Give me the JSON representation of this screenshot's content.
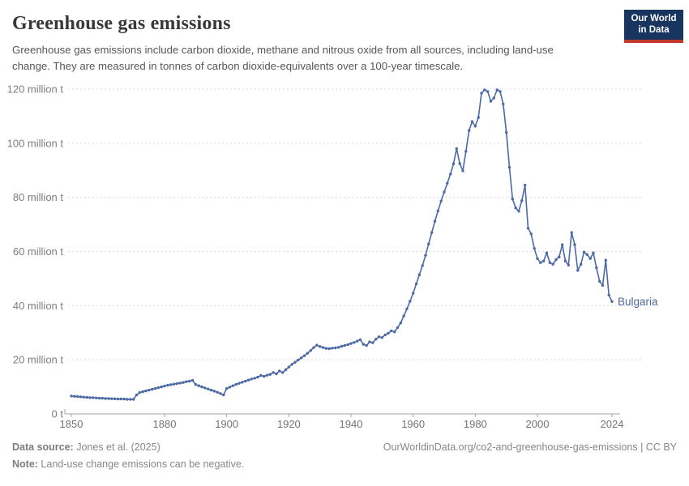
{
  "header": {
    "title": "Greenhouse gas emissions",
    "subtitle": "Greenhouse gas emissions include carbon dioxide, methane and nitrous oxide from all sources, including land-use change. They are measured in tonnes of carbon dioxide-equivalents over a 100-year timescale.",
    "logo": {
      "line1": "Our World",
      "line2": "in Data",
      "bg_color": "#17355e",
      "stripe_color": "#c0392b",
      "text_color": "#ffffff"
    }
  },
  "chart_data": {
    "type": "line",
    "title": "Greenhouse gas emissions",
    "entity": "Bulgaria",
    "unit": "tonnes of CO2-equivalents",
    "line_color": "#4c6aa5",
    "entity_label_color": "#4c68a1",
    "grid": "horizontal-dashed",
    "legend_position": "end-of-line",
    "x_start": 1850,
    "x_end": 2024,
    "xticks": [
      1850,
      1880,
      1900,
      1920,
      1940,
      1960,
      1980,
      2000,
      2024
    ],
    "ylim": [
      0,
      120
    ],
    "ytick_values": [
      0,
      20,
      40,
      60,
      80,
      100,
      120
    ],
    "ytick_labels": [
      "0 t",
      "20 million t",
      "40 million t",
      "60 million t",
      "80 million t",
      "100 million t",
      "120 million t"
    ],
    "values_unit": "million tonnes CO2e",
    "values": [
      6.6,
      6.5,
      6.4,
      6.3,
      6.2,
      6.1,
      6.0,
      6.0,
      5.9,
      5.8,
      5.8,
      5.7,
      5.7,
      5.6,
      5.6,
      5.5,
      5.5,
      5.5,
      5.4,
      5.4,
      5.4,
      7.0,
      7.9,
      8.2,
      8.5,
      8.8,
      9.1,
      9.4,
      9.7,
      10.0,
      10.3,
      10.6,
      10.8,
      11.0,
      11.2,
      11.4,
      11.6,
      11.9,
      12.1,
      12.4,
      10.9,
      10.4,
      10.0,
      9.6,
      9.2,
      8.8,
      8.4,
      8.0,
      7.5,
      7.0,
      9.4,
      9.9,
      10.4,
      10.9,
      11.3,
      11.7,
      12.1,
      12.5,
      12.9,
      13.2,
      13.6,
      14.2,
      13.9,
      14.3,
      14.6,
      15.3,
      14.8,
      15.9,
      15.3,
      16.3,
      17.3,
      18.3,
      19.1,
      19.9,
      20.7,
      21.5,
      22.4,
      23.4,
      24.5,
      25.4,
      24.9,
      24.5,
      24.2,
      24.1,
      24.3,
      24.4,
      24.6,
      25.0,
      25.3,
      25.6,
      26.0,
      26.4,
      26.9,
      27.4,
      25.7,
      25.3,
      26.6,
      26.3,
      27.6,
      28.5,
      28.2,
      29.2,
      29.8,
      30.7,
      30.3,
      31.9,
      33.6,
      36.2,
      38.8,
      41.6,
      44.6,
      48.0,
      51.4,
      54.8,
      58.6,
      62.8,
      67.0,
      71.2,
      75.0,
      78.6,
      82.0,
      85.2,
      88.6,
      92.4,
      98.0,
      92.5,
      89.8,
      97.0,
      104.7,
      108.0,
      106.3,
      109.5,
      118.5,
      119.7,
      119.1,
      115.5,
      116.7,
      119.7,
      119.1,
      114.5,
      104.0,
      91.1,
      79.4,
      76.1,
      74.9,
      78.8,
      84.5,
      68.6,
      66.5,
      61.1,
      57.4,
      55.9,
      56.5,
      59.5,
      55.9,
      55.3,
      57.0,
      58.0,
      62.5,
      56.5,
      55.0,
      67.0,
      62.5,
      53.0,
      55.3,
      59.8,
      58.9,
      57.4,
      59.5,
      54.0,
      49.0,
      47.5,
      56.8,
      43.9,
      41.5
    ]
  },
  "footer": {
    "source_label": "Data source:",
    "source_text": " Jones et al. (2025)",
    "note_label": "Note:",
    "note_text": " Land-use change emissions can be negative.",
    "url": "OurWorldinData.org/co2-and-greenhouse-gas-emissions | CC BY"
  }
}
